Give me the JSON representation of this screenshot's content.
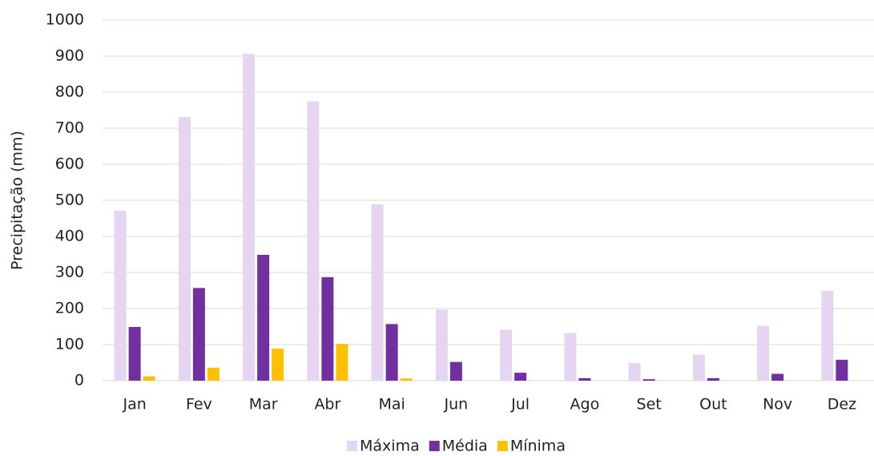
{
  "chart_data": {
    "type": "bar",
    "y_label": "Precipitação (mm)",
    "categories": [
      "Jan",
      "Fev",
      "Mar",
      "Abr",
      "Mai",
      "Jun",
      "Jul",
      "Ago",
      "Set",
      "Out",
      "Nov",
      "Dez"
    ],
    "series": [
      {
        "name": "Máxima",
        "color": "#e5d5f2",
        "values": [
          471,
          731,
          906,
          774,
          489,
          197,
          141,
          132,
          49,
          72,
          152,
          249
        ]
      },
      {
        "name": "Média",
        "color": "#7030a0",
        "values": [
          149,
          257,
          349,
          287,
          157,
          52,
          22,
          7,
          4,
          7,
          19,
          58
        ]
      },
      {
        "name": "Mínima",
        "color": "#ffc000",
        "values": [
          12,
          36,
          89,
          102,
          6,
          0,
          0,
          0,
          0,
          0,
          0,
          0
        ]
      }
    ],
    "ylim": [
      0,
      1000
    ],
    "yticks": [
      0,
      100,
      200,
      300,
      400,
      500,
      600,
      700,
      800,
      900,
      1000
    ],
    "grid": true,
    "legend": "bottom"
  }
}
